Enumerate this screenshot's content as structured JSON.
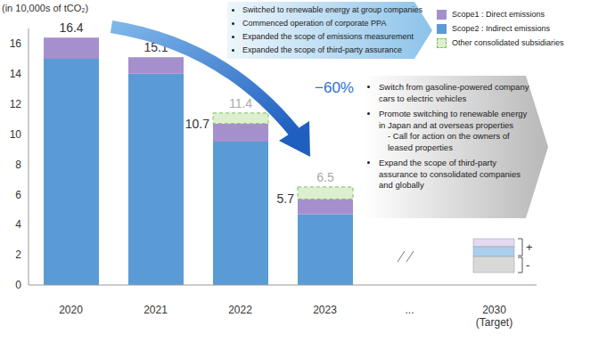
{
  "chart_data": {
    "type": "bar",
    "stacked": true,
    "grid": false,
    "legend": "top-right",
    "y_label": "(in 10,000s of tCO₂)",
    "categories": [
      "2020",
      "2021",
      "2022",
      "2023",
      "...",
      "2030\n(Target)"
    ],
    "series": [
      {
        "name": "Scope2 : Indirect emissions",
        "color": "#5b9bd5",
        "values": [
          15.0,
          14.0,
          9.5,
          4.7,
          null,
          0
        ]
      },
      {
        "name": "Scope1 : Direct emissions",
        "color": "#a58fcc",
        "values": [
          1.4,
          1.1,
          1.2,
          1.0,
          null,
          0
        ]
      },
      {
        "name": "Other consolidated subsidiaries",
        "color": "#dcefcf",
        "values": [
          null,
          null,
          0.7,
          0.8,
          null,
          0
        ]
      }
    ],
    "totals": [
      16.4,
      15.1,
      10.7,
      5.7,
      null,
      0
    ],
    "totals_with_subsidiaries": [
      null,
      null,
      11.4,
      6.5,
      null,
      null
    ],
    "ylim": [
      0,
      17
    ],
    "yticks": [
      0,
      2,
      4,
      6,
      8,
      10,
      12,
      14,
      16
    ],
    "annotations": {
      "reduction": "−60%",
      "target_signs": [
        "+",
        "-"
      ],
      "measures_done": [
        "Switched to renewable energy at group companies",
        "Commenced operation of corporate PPA",
        "Expanded the scope of emissions measurement",
        "Expanded the scope of third-party assurance"
      ],
      "measures_planned": [
        {
          "text": "Switch from gasoline-powered company cars to electric vehicles"
        },
        {
          "text": "Promote switching to renewable energy in Japan and at overseas properties",
          "sub": [
            "- Call for action on the owners of leased properties"
          ]
        },
        {
          "text": "Expand the scope of third-party assurance to consolidated companies and globally"
        }
      ]
    }
  }
}
